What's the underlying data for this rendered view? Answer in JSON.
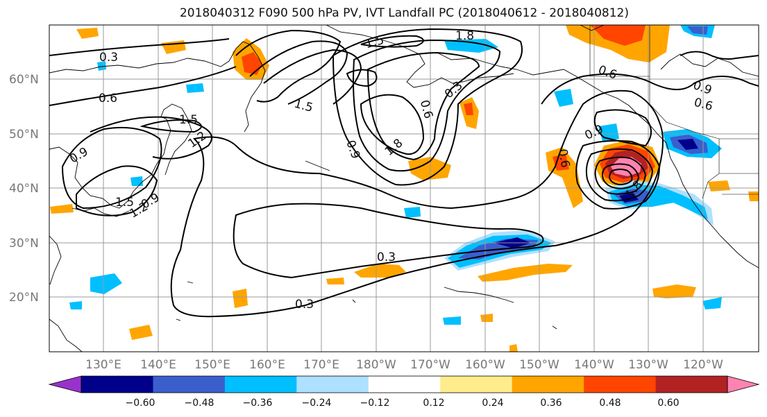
{
  "title": "2018040312 F090 500 hPa PV, IVT Landfall PC (2018040612 - 2018040812)",
  "map": {
    "lat_labels": [
      "60°N",
      "50°N",
      "40°N",
      "30°N",
      "20°N"
    ],
    "lon_labels": [
      "130°E",
      "140°E",
      "150°E",
      "160°E",
      "170°E",
      "180°W",
      "170°W",
      "160°W",
      "150°W",
      "140°W",
      "130°W",
      "120°W"
    ],
    "contour_labels": [
      "0.3",
      "0.6",
      "0.9",
      "1.2",
      "1.5",
      "1.8",
      "0.3",
      "0.3",
      "1.5",
      "1.8",
      "0.6",
      "0.9",
      "0.3",
      "0.6",
      "0.9",
      "0.6",
      "0.9",
      "1.5",
      "1.8",
      "1.5",
      "1.2",
      "0.9",
      "0.6"
    ],
    "colors": {
      "light_blue": "#aee0ff",
      "cyan": "#00bfff",
      "royal_blue": "#3a5fcd",
      "navy": "#00008b",
      "yellow": "#ffec8b",
      "orange": "#ffa500",
      "red_orange": "#ff4500",
      "dark_red": "#b22222",
      "pink": "#ff83b0"
    }
  },
  "colorbar": {
    "ticks": [
      "−0.60",
      "−0.48",
      "−0.36",
      "−0.24",
      "−0.12",
      "0.12",
      "0.24",
      "0.36",
      "0.48",
      "0.60"
    ],
    "colors": [
      "#9932cc",
      "#00008b",
      "#3a5fcd",
      "#00bfff",
      "#aee0ff",
      "#ffffff",
      "#ffec8b",
      "#ffa500",
      "#ff4500",
      "#b22222",
      "#ff83b0"
    ]
  }
}
